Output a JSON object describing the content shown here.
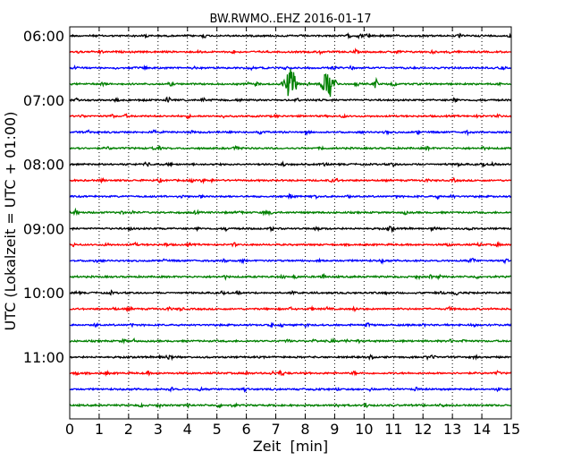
{
  "chart_data": {
    "type": "line",
    "title": "BW.RWMO..EHZ 2016-01-17",
    "xlabel": "Zeit  [min]",
    "ylabel": "UTC (Lokalzeit = UTC + 01:00)",
    "xlim": [
      0,
      15
    ],
    "x_ticks": [
      "0",
      "1",
      "2",
      "3",
      "4",
      "5",
      "6",
      "7",
      "8",
      "9",
      "10",
      "11",
      "12",
      "13",
      "14",
      "15"
    ],
    "y_tick_labels": [
      "06:00",
      "07:00",
      "08:00",
      "09:00",
      "10:00",
      "11:00"
    ],
    "grid": {
      "vertical": true,
      "horizontal": false,
      "style": "dotted"
    },
    "trace_interval_minutes": 15,
    "trace_start": "06:00",
    "trace_count": 24,
    "trace_colors": [
      "#000000",
      "#ff0000",
      "#0000ff",
      "#008000"
    ],
    "events": [
      {
        "trace_start": "06:45",
        "x_min": 7.5,
        "amplitude": "large",
        "color": "#008000"
      },
      {
        "trace_start": "06:45",
        "x_min": 8.8,
        "amplitude": "large",
        "color": "#008000"
      },
      {
        "trace_start": "06:45",
        "x_min": 10.4,
        "amplitude": "small",
        "color": "#008000"
      }
    ]
  }
}
